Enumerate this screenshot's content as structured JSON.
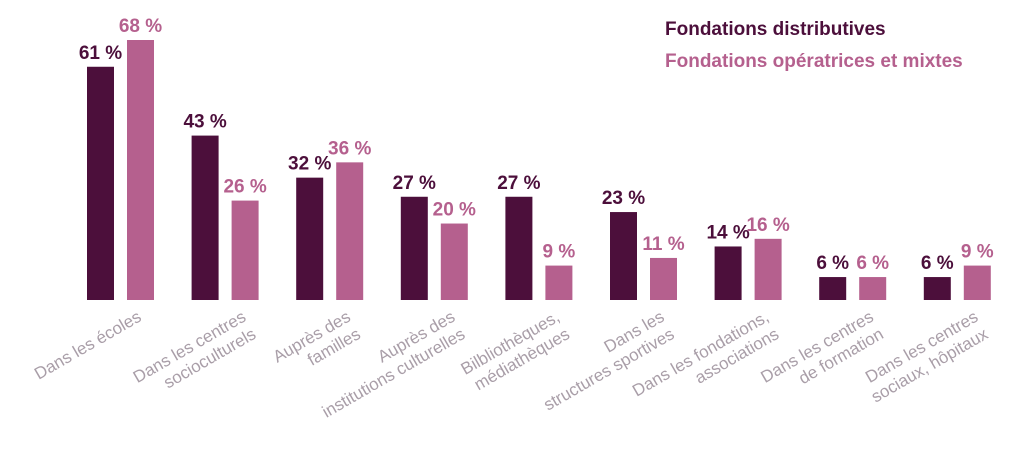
{
  "chart_data": {
    "type": "bar",
    "categories": [
      [
        "Dans les écoles"
      ],
      [
        "Dans les centres",
        "socioculturels"
      ],
      [
        "Auprès des",
        "familles"
      ],
      [
        "Auprès des",
        "institutions culturelles"
      ],
      [
        "Bilbliothèques,",
        "médiathèques"
      ],
      [
        "Dans les",
        "structures sportives"
      ],
      [
        "Dans les fondations,",
        "associations"
      ],
      [
        "Dans les centres",
        "de formation"
      ],
      [
        "Dans les centres",
        "sociaux, hôpitaux"
      ]
    ],
    "series": [
      {
        "name": "Fondations distributives",
        "color": "#4c0f3b",
        "values": [
          61,
          43,
          32,
          27,
          27,
          23,
          14,
          6,
          6
        ],
        "value_labels": [
          "61 %",
          "43 %",
          "32 %",
          "27 %",
          "27 %",
          "23 %",
          "14 %",
          "6 %",
          "6 %"
        ]
      },
      {
        "name": "Fondations opératrices et mixtes",
        "color": "#b5608e",
        "values": [
          68,
          26,
          36,
          20,
          9,
          11,
          16,
          6,
          9
        ],
        "value_labels": [
          "68 %",
          "26 %",
          "36 %",
          "20 %",
          "9 %",
          "11 %",
          "16 %",
          "6 %",
          "9 %"
        ]
      }
    ],
    "ylim": [
      0,
      68
    ]
  }
}
